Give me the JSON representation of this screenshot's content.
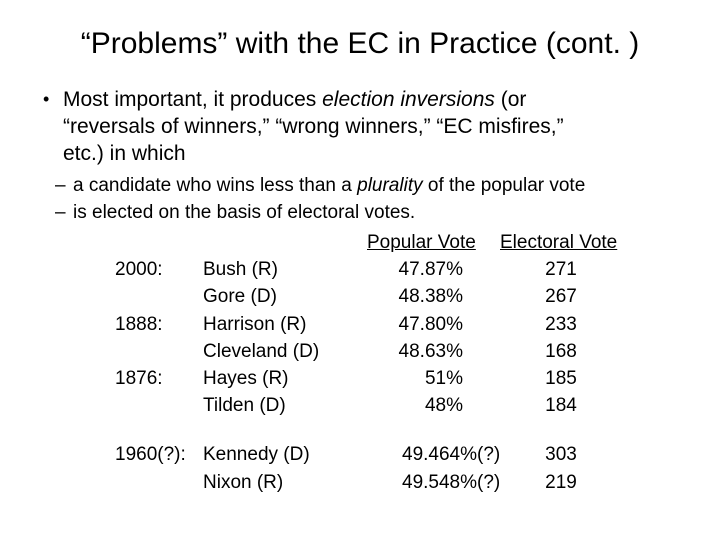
{
  "colors": {
    "text": "#000000",
    "background": "#ffffff"
  },
  "title": "“Problems” with the EC in Practice (cont. )",
  "bullet": {
    "marker": "•",
    "lines": [
      [
        {
          "t": "Most important, it produces "
        },
        {
          "t": "election inversions",
          "i": true
        },
        {
          "t": " (or"
        }
      ],
      [
        {
          "t": "“reversals of winners,” “wrong winners,” “EC misfires,”"
        }
      ],
      [
        {
          "t": "etc.) in which"
        }
      ]
    ]
  },
  "sub_bullets": [
    {
      "marker": "–",
      "runs": [
        {
          "t": "a candidate who wins less than a "
        },
        {
          "t": "plurality",
          "i": true
        },
        {
          "t": " of the popular vote"
        }
      ]
    },
    {
      "marker": "–",
      "runs": [
        {
          "t": "is elected on the basis of electoral votes."
        }
      ]
    }
  ],
  "table": {
    "col_headers": {
      "popular": "Popular Vote",
      "electoral": "Electoral Vote"
    },
    "rows": [
      {
        "year": "2000:",
        "candidate": "Bush (R)",
        "popular": "47.87%",
        "electoral": "271"
      },
      {
        "year": "",
        "candidate": "Gore (D)",
        "popular": "48.38%",
        "electoral": "267"
      },
      {
        "year": "1888:",
        "candidate": "Harrison (R)",
        "popular": "47.80%",
        "electoral": "233"
      },
      {
        "year": "",
        "candidate": "Cleveland (D)",
        "popular": "48.63%",
        "electoral": "168"
      },
      {
        "year": "1876:",
        "candidate": "Hayes (R)",
        "popular": "51%",
        "electoral": "185"
      },
      {
        "year": "",
        "candidate": "Tilden (D)",
        "popular": "48%",
        "electoral": "184"
      },
      {
        "year": "1960(?):",
        "candidate": "Kennedy (D)",
        "popular": "49.464%(?)",
        "electoral": "303"
      },
      {
        "year": "",
        "candidate": "Nixon (R)",
        "popular": "49.548%(?)",
        "electoral": "219"
      }
    ]
  }
}
